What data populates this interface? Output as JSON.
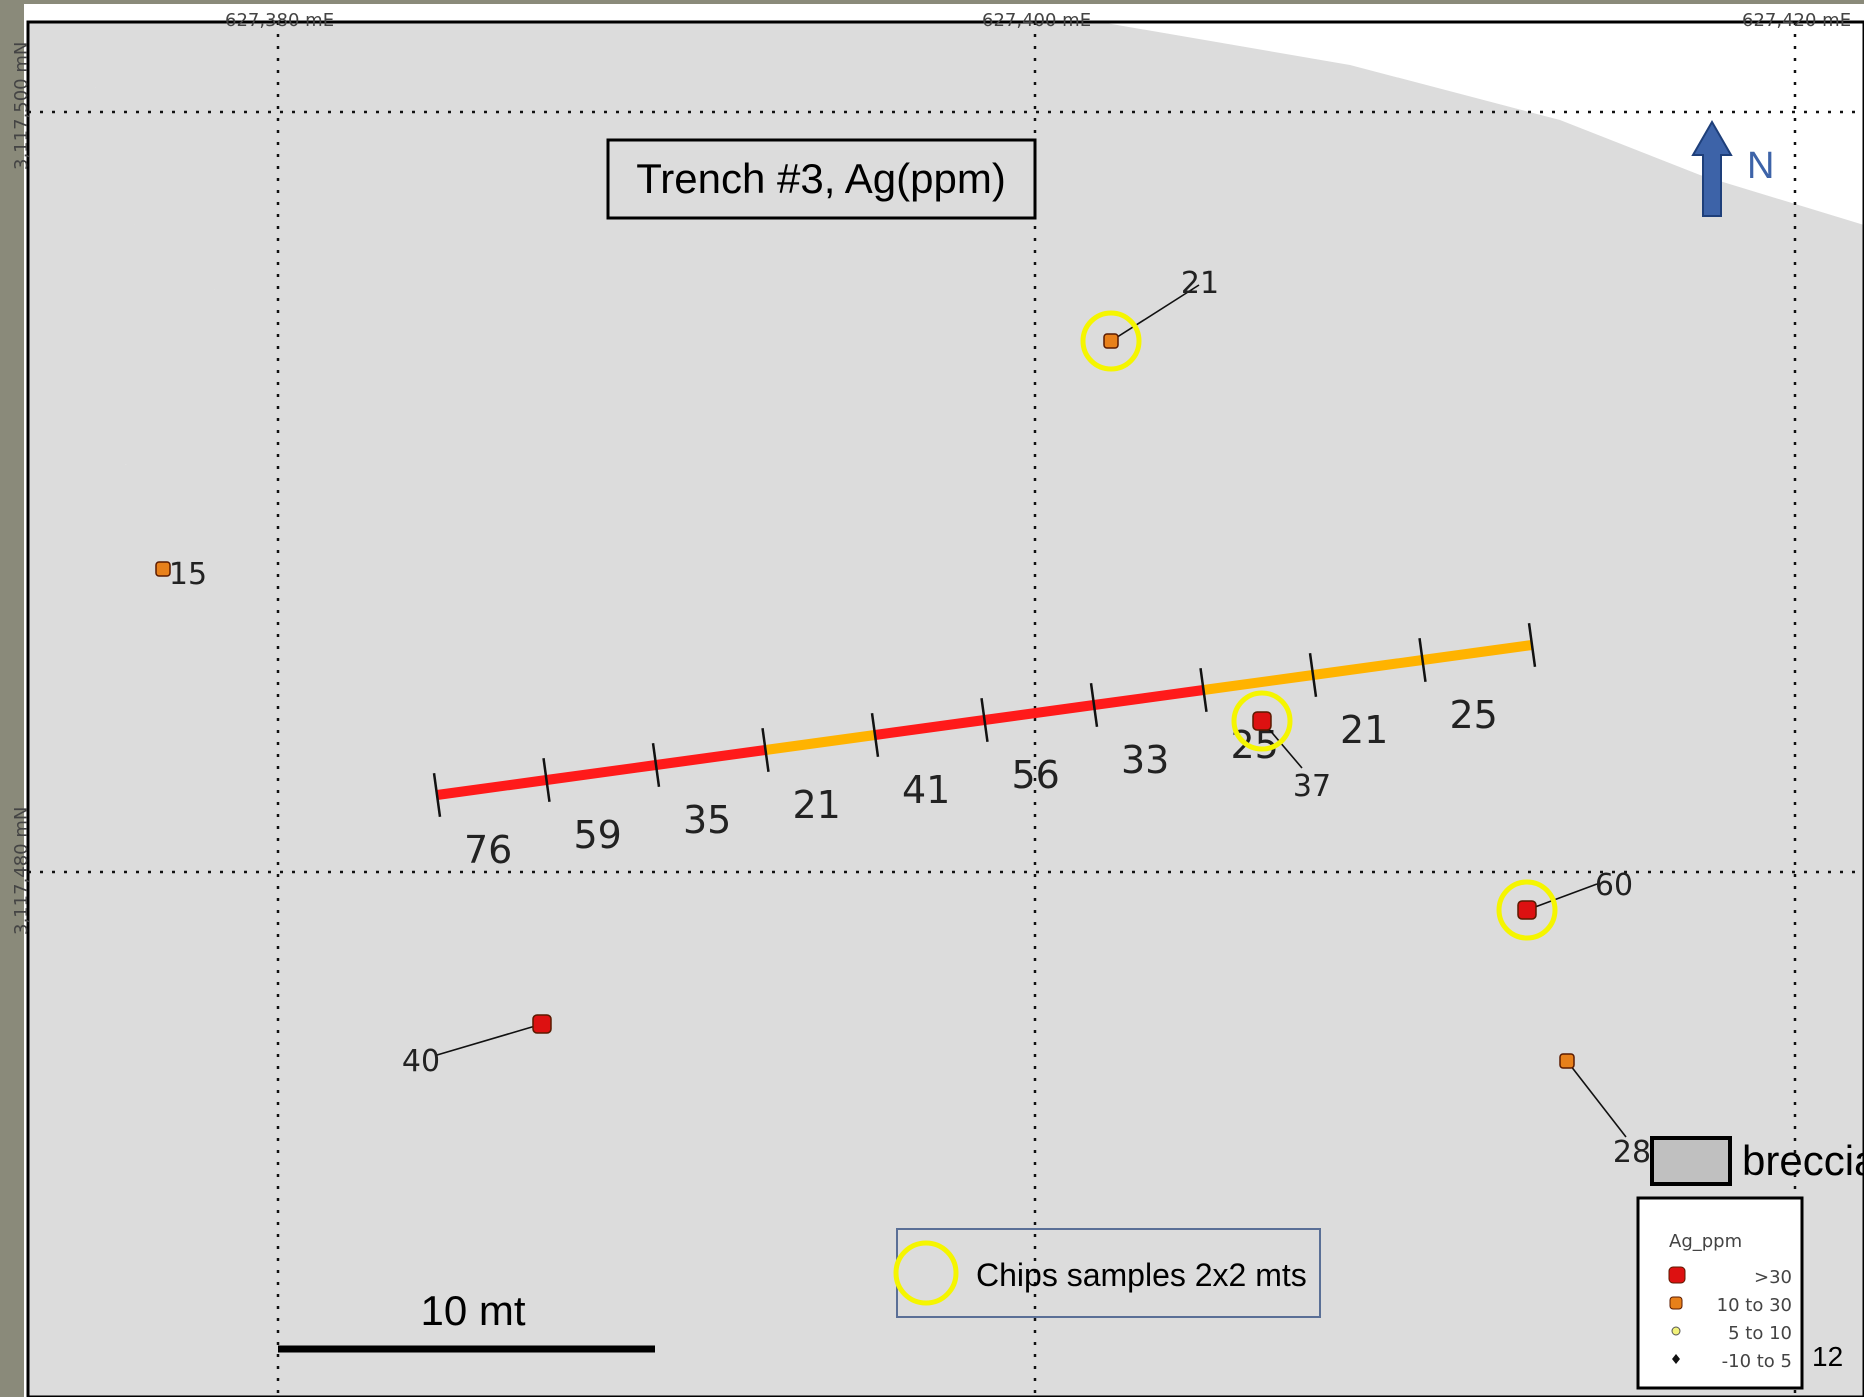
{
  "map": {
    "title": "Trench #3, Ag(ppm)",
    "north_label": "N",
    "grid": {
      "easting_labels": [
        "627,380 mE",
        "627,400 mE",
        "627,420 mE"
      ],
      "northing_labels": [
        "3,117,500 mN",
        "3,117,480 mN"
      ]
    },
    "scale_bar": {
      "label": "10 mt"
    },
    "page_number": "12",
    "rock_legend": {
      "label": "breccia"
    },
    "chip_legend": {
      "label": "Chips samples 2x2 mts"
    },
    "ag_legend": {
      "title": "Ag_ppm",
      "classes": [
        {
          "label": ">30",
          "color": "#dd1111"
        },
        {
          "label": "10 to 30",
          "color": "#e8801a"
        },
        {
          "label": "5 to 10",
          "color": "#f2f27a"
        },
        {
          "label": "-10 to  5",
          "color": "#111111"
        }
      ]
    },
    "trench_segments": [
      {
        "value": "76",
        "ppm": 76
      },
      {
        "value": "59",
        "ppm": 59
      },
      {
        "value": "35",
        "ppm": 35
      },
      {
        "value": "21",
        "ppm": 21
      },
      {
        "value": "41",
        "ppm": 41
      },
      {
        "value": "56",
        "ppm": 56
      },
      {
        "value": "33",
        "ppm": 33
      },
      {
        "value": "25",
        "ppm": 25
      },
      {
        "value": "21",
        "ppm": 21
      },
      {
        "value": "25",
        "ppm": 25
      }
    ],
    "samples": [
      {
        "value": "21",
        "ppm": 21,
        "chip": true
      },
      {
        "value": "15",
        "ppm": 15,
        "chip": false
      },
      {
        "value": "37",
        "ppm": 37,
        "chip": true
      },
      {
        "value": "60",
        "ppm": 60,
        "chip": true
      },
      {
        "value": "40",
        "ppm": 40,
        "chip": false
      },
      {
        "value": "28",
        "ppm": 28,
        "chip": false
      }
    ],
    "colors": {
      "breccia_fill": "#dcdcdc",
      "high": "#ff1a1a",
      "mid": "#ffb300",
      "chip_ring": "#f5f500",
      "north_arrow": "#3d63a8"
    }
  }
}
